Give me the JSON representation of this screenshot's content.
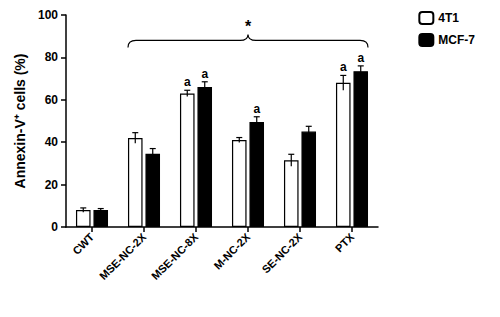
{
  "chart_data": {
    "type": "bar",
    "y_label": "Annexin-V⁺ cells (%)",
    "categories": [
      "CWT",
      "MSE-NC-2X",
      "MSE-NC-8X",
      "M-NC-2X",
      "SE-NC-2X",
      "PTX"
    ],
    "series": [
      {
        "name": "4T1",
        "color": "#ffffff",
        "values": [
          8,
          42,
          63,
          41,
          31.5,
          68
        ],
        "errors": [
          1,
          2.5,
          1.5,
          1.2,
          2.8,
          3.5
        ],
        "annotations": [
          null,
          null,
          "a",
          null,
          null,
          "a"
        ]
      },
      {
        "name": "MCF-7",
        "color": "#000000",
        "values": [
          8,
          34.5,
          66,
          49.5,
          45,
          73.5
        ],
        "errors": [
          0.7,
          2.5,
          2.5,
          2.5,
          2.5,
          2.5
        ],
        "annotations": [
          null,
          null,
          "a",
          "a",
          null,
          "a"
        ]
      }
    ],
    "bracket": {
      "label": "*",
      "from": "MSE-NC-2X",
      "to": "PTX",
      "y": 88
    },
    "ylim": [
      0,
      100
    ],
    "yticks": [
      0,
      20,
      40,
      60,
      80,
      100
    ],
    "grid": false,
    "legend": "top right"
  }
}
